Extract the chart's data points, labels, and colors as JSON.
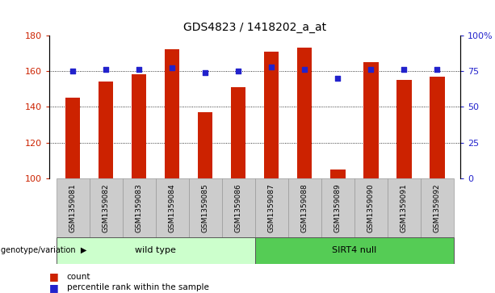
{
  "title": "GDS4823 / 1418202_a_at",
  "samples": [
    "GSM1359081",
    "GSM1359082",
    "GSM1359083",
    "GSM1359084",
    "GSM1359085",
    "GSM1359086",
    "GSM1359087",
    "GSM1359088",
    "GSM1359089",
    "GSM1359090",
    "GSM1359091",
    "GSM1359092"
  ],
  "counts": [
    145,
    154,
    158,
    172,
    137,
    151,
    171,
    173,
    105,
    165,
    155,
    157
  ],
  "percentiles": [
    75,
    76,
    76,
    77,
    74,
    75,
    78,
    76,
    70,
    76,
    76,
    76
  ],
  "ylim_left": [
    100,
    180
  ],
  "ylim_right": [
    0,
    100
  ],
  "yticks_left": [
    100,
    120,
    140,
    160,
    180
  ],
  "yticks_right": [
    0,
    25,
    50,
    75,
    100
  ],
  "ytick_labels_right": [
    "0",
    "25",
    "50",
    "75",
    "100%"
  ],
  "groups": [
    {
      "label": "wild type",
      "start": 0,
      "end": 5,
      "color": "#ccffcc"
    },
    {
      "label": "SIRT4 null",
      "start": 6,
      "end": 11,
      "color": "#55cc55"
    }
  ],
  "bar_color": "#cc2200",
  "dot_color": "#2222cc",
  "bar_width": 0.45,
  "bg_color": "#ffffff",
  "tick_bg": "#cccccc",
  "group_label": "genotype/variation",
  "legend_count": "count",
  "legend_pct": "percentile rank within the sample",
  "legend_count_color": "#cc2200",
  "legend_pct_color": "#2222cc"
}
